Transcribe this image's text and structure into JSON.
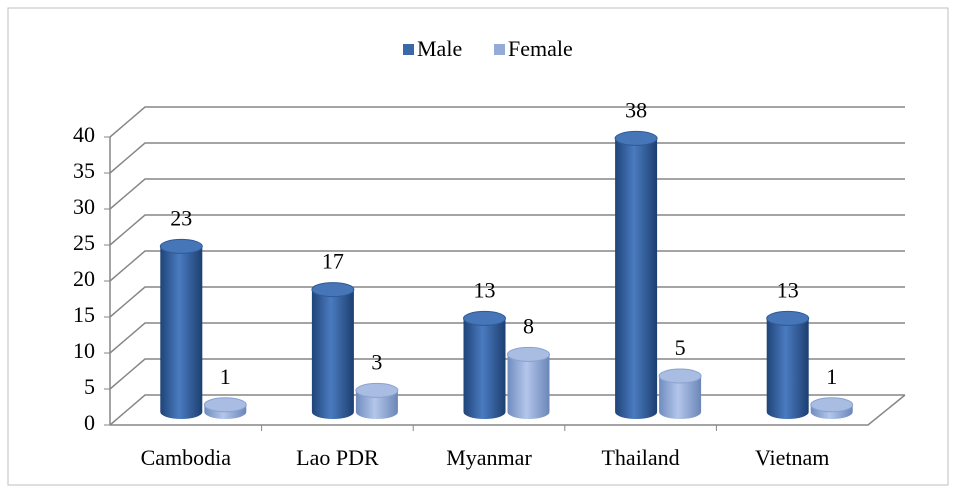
{
  "chart_data": {
    "type": "bar3d",
    "categories": [
      "Cambodia",
      "Lao PDR",
      "Myanmar",
      "Thailand",
      "Vietnam"
    ],
    "series": [
      {
        "name": "Male",
        "color": "#3b69a8",
        "values": [
          23,
          17,
          13,
          38,
          13
        ]
      },
      {
        "name": "Female",
        "color": "#94abd8",
        "values": [
          1,
          3,
          8,
          5,
          1
        ]
      }
    ],
    "ylim": [
      0,
      40
    ],
    "yticks": [
      0,
      5,
      10,
      15,
      20,
      25,
      30,
      35,
      40
    ],
    "grid": true,
    "legend": "top"
  }
}
